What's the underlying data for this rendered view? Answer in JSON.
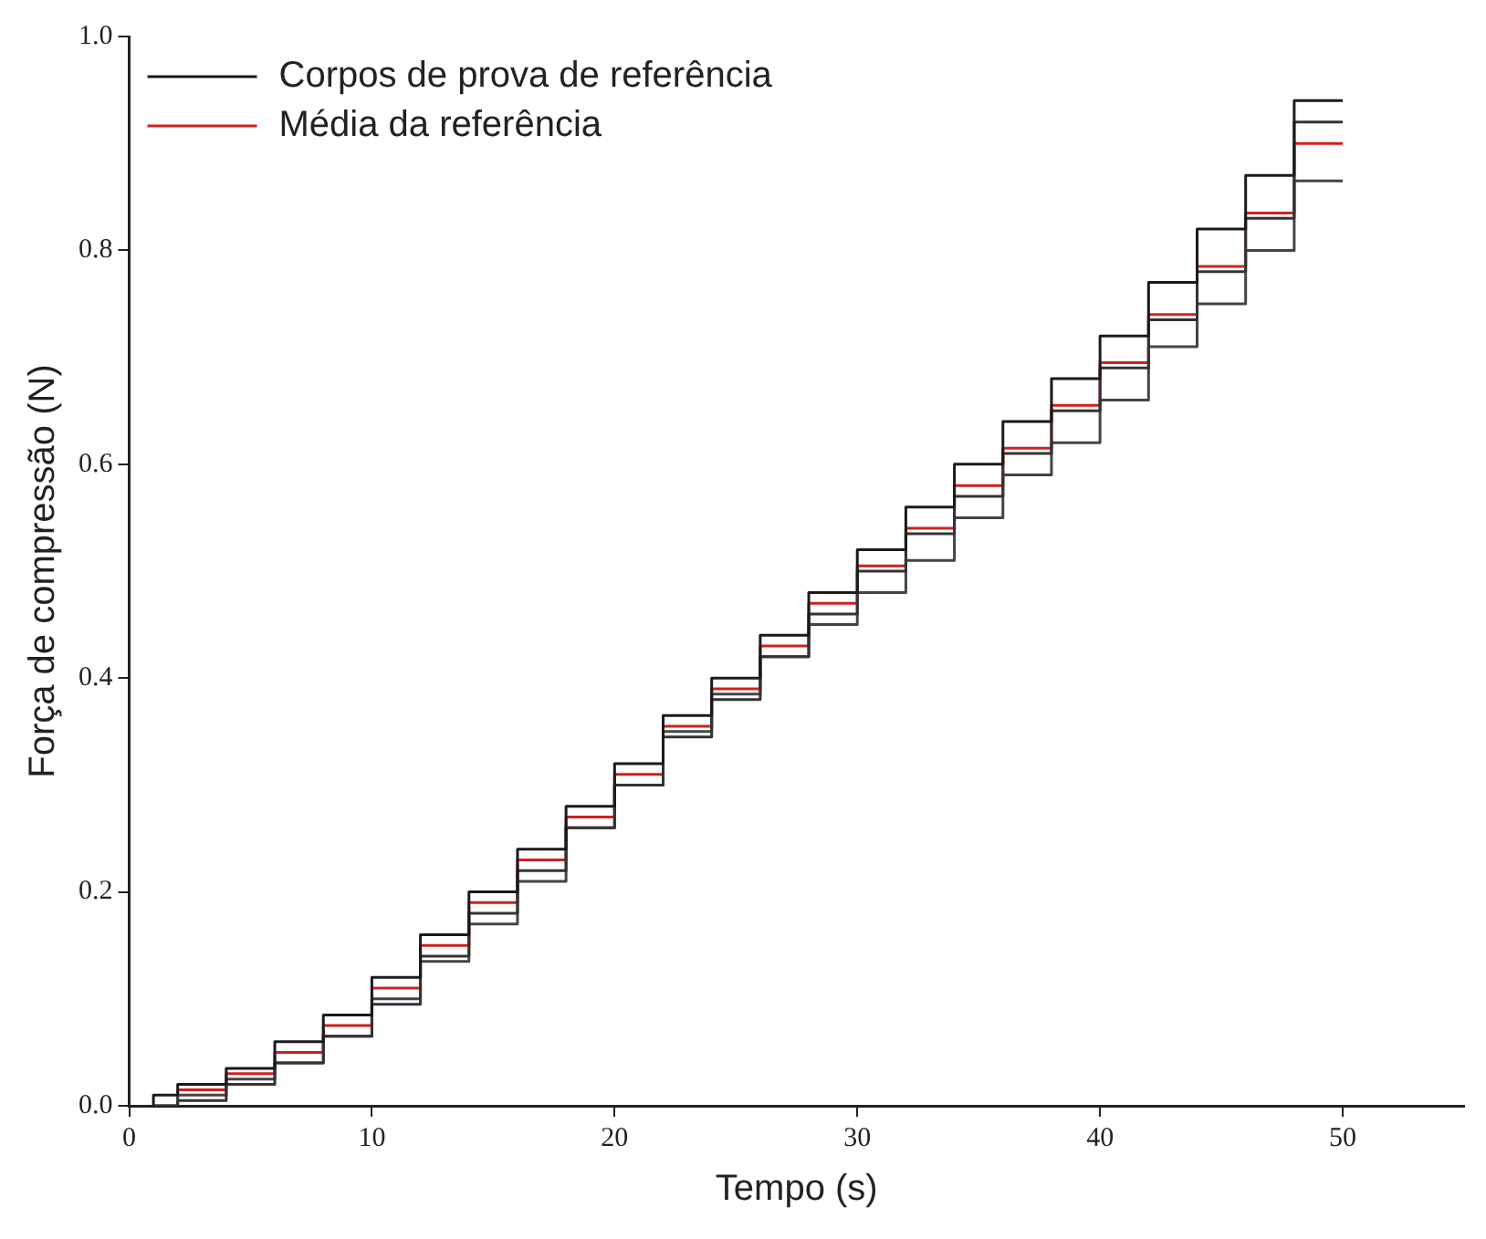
{
  "chart_data": {
    "type": "step",
    "xlabel": "Tempo (s)",
    "ylabel": "Força de compressão (N)",
    "xlim": [
      0,
      55
    ],
    "xticks": [
      0,
      10,
      20,
      30,
      40,
      50
    ],
    "ylim": [
      0,
      1
    ],
    "yticks": [
      {
        "value": 0,
        "label": "0.0"
      },
      {
        "value": 0.2,
        "label": "0.2"
      },
      {
        "value": 0.4,
        "label": "0.4"
      },
      {
        "value": 0.6,
        "label": "0.6"
      },
      {
        "value": 0.8,
        "label": "0.8"
      },
      {
        "value": 1,
        "label": "1.0"
      }
    ],
    "grid": false,
    "legend": "top left",
    "marker": "none",
    "line_style": "solid",
    "x": [
      1,
      2,
      4,
      6,
      8,
      10,
      12,
      14,
      16,
      18,
      20,
      22,
      24,
      26,
      28,
      30,
      32,
      34,
      36,
      38,
      40,
      42,
      44,
      46,
      48,
      50
    ],
    "series": [
      {
        "name": "Corpos de prova de referência",
        "color": "#1a1a1a",
        "values": [
          0,
          0.01,
          0.02,
          0.035,
          0.06,
          0.085,
          0.12,
          0.16,
          0.2,
          0.24,
          0.28,
          0.32,
          0.365,
          0.4,
          0.44,
          0.48,
          0.52,
          0.56,
          0.6,
          0.64,
          0.68,
          0.72,
          0.77,
          0.82,
          0.87,
          0.94
        ]
      },
      {
        "color": "#333333",
        "values": [
          0,
          0.0,
          0.005,
          0.02,
          0.04,
          0.065,
          0.095,
          0.14,
          0.18,
          0.22,
          0.26,
          0.3,
          0.345,
          0.38,
          0.42,
          0.46,
          0.5,
          0.535,
          0.57,
          0.61,
          0.65,
          0.69,
          0.735,
          0.78,
          0.83,
          0.92
        ]
      },
      {
        "color": "#444444",
        "values": [
          0,
          0.0,
          0.01,
          0.025,
          0.04,
          0.065,
          0.1,
          0.135,
          0.17,
          0.21,
          0.26,
          0.3,
          0.35,
          0.385,
          0.42,
          0.45,
          0.48,
          0.51,
          0.55,
          0.59,
          0.62,
          0.66,
          0.71,
          0.75,
          0.8,
          0.865
        ]
      },
      {
        "name": "Média da referência",
        "color": "#d02020",
        "values": [
          null,
          0.005,
          0.015,
          0.03,
          0.05,
          0.075,
          0.11,
          0.15,
          0.19,
          0.23,
          0.27,
          0.31,
          0.355,
          0.39,
          0.43,
          0.47,
          0.505,
          0.54,
          0.58,
          0.615,
          0.655,
          0.695,
          0.74,
          0.785,
          0.835,
          0.9
        ]
      }
    ]
  }
}
